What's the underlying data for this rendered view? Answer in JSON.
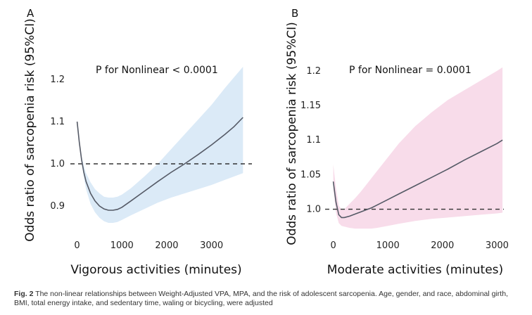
{
  "caption": {
    "label": "Fig. 2",
    "text": "The non-linear relationships between Weight-Adjusted VPA, MPA, and the risk of adolescent sarcopenia. Age, gender, and race, abdominal girth, BMI, total energy intake, and sedentary time, waling or bicycling, were adjusted"
  },
  "chart_data": [
    {
      "type": "line",
      "panel_label": "A",
      "annotation": "P for Nonlinear < 0.0001",
      "xlabel": "Vigorous activities (minutes)",
      "ylabel": "Odds ratio of sarcopenia risk (95%CI)",
      "xlim": [
        -150,
        3900
      ],
      "ylim": [
        0.835,
        1.245
      ],
      "xticks": [
        0,
        1000,
        2000,
        3000
      ],
      "xtick_labels": [
        "0",
        "1000",
        "2000",
        "3000"
      ],
      "yticks": [
        0.9,
        1.0,
        1.1,
        1.2
      ],
      "ytick_labels": [
        "0.9",
        "1.0",
        "1.1",
        "1.2"
      ],
      "reference_line": 1.0,
      "line_color": "#555a66",
      "band_color": "#dbeaf7",
      "x": [
        0,
        50,
        100,
        150,
        200,
        300,
        400,
        500,
        600,
        700,
        800,
        900,
        1000,
        1200,
        1500,
        1800,
        2100,
        2400,
        2700,
        3000,
        3300,
        3500,
        3700
      ],
      "y": [
        1.1,
        1.051,
        1.01,
        0.98,
        0.958,
        0.93,
        0.912,
        0.9,
        0.893,
        0.89,
        0.89,
        0.892,
        0.897,
        0.912,
        0.935,
        0.958,
        0.98,
        1.0,
        1.022,
        1.045,
        1.07,
        1.088,
        1.11
      ],
      "lower": [
        1.1,
        1.05,
        1.005,
        0.968,
        0.94,
        0.905,
        0.885,
        0.872,
        0.864,
        0.86,
        0.86,
        0.862,
        0.867,
        0.878,
        0.893,
        0.908,
        0.92,
        0.93,
        0.94,
        0.95,
        0.962,
        0.97,
        0.978
      ],
      "upper": [
        1.1,
        1.053,
        1.018,
        0.995,
        0.978,
        0.956,
        0.94,
        0.93,
        0.922,
        0.92,
        0.92,
        0.922,
        0.927,
        0.942,
        0.97,
        1.0,
        1.035,
        1.07,
        1.105,
        1.14,
        1.18,
        1.205,
        1.23
      ]
    },
    {
      "type": "line",
      "panel_label": "B",
      "annotation": "P for Nonlinear = 0.0001",
      "xlabel": "Moderate activities (minutes)",
      "ylabel": "Odds ratio of sarcopenia risk (95%CI)",
      "xlim": [
        -150,
        3150
      ],
      "ylim": [
        0.965,
        1.215
      ],
      "xticks": [
        0,
        1000,
        2000,
        3000
      ],
      "xtick_labels": [
        "0",
        "1000",
        "2000",
        "3000"
      ],
      "yticks": [
        1.0,
        1.05,
        1.1,
        1.15,
        1.2
      ],
      "ytick_labels": [
        "1.0",
        "1.05",
        "1.1",
        "1.15",
        "1.2"
      ],
      "reference_line": 1.0,
      "line_color": "#555a66",
      "band_color": "#f8dcea",
      "x": [
        0,
        50,
        100,
        150,
        200,
        300,
        400,
        500,
        600,
        700,
        800,
        1000,
        1200,
        1500,
        1800,
        2100,
        2400,
        2700,
        3000,
        3100
      ],
      "y": [
        1.04,
        1.01,
        0.992,
        0.988,
        0.988,
        0.99,
        0.993,
        0.996,
        0.999,
        1.002,
        1.006,
        1.014,
        1.022,
        1.034,
        1.046,
        1.058,
        1.071,
        1.083,
        1.095,
        1.1
      ],
      "lower": [
        1.03,
        0.995,
        0.98,
        0.976,
        0.975,
        0.973,
        0.972,
        0.972,
        0.972,
        0.972,
        0.973,
        0.976,
        0.979,
        0.983,
        0.986,
        0.988,
        0.99,
        0.992,
        0.994,
        0.995
      ],
      "upper": [
        1.065,
        1.03,
        1.005,
        1.0,
        1.0,
        1.008,
        1.016,
        1.025,
        1.035,
        1.045,
        1.055,
        1.075,
        1.095,
        1.12,
        1.14,
        1.158,
        1.172,
        1.186,
        1.2,
        1.205
      ]
    }
  ]
}
